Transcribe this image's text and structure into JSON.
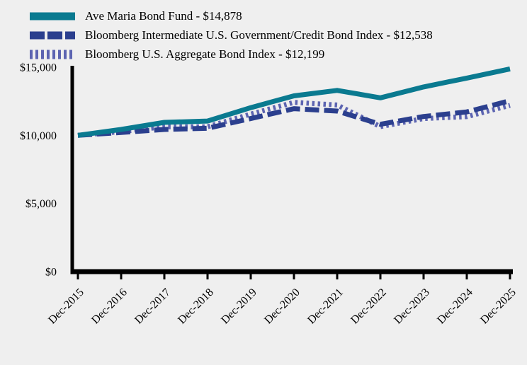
{
  "page": {
    "background_color": "#efefef",
    "text_color": "#000000"
  },
  "chart_data": {
    "type": "line",
    "title": "",
    "xlabel": "",
    "ylabel": "",
    "ylim": [
      0,
      15000
    ],
    "grid": false,
    "legend_position": "top-left",
    "x_categories": [
      "Dec-2015",
      "Dec-2016",
      "Dec-2017",
      "Dec-2018",
      "Dec-2019",
      "Dec-2020",
      "Dec-2021",
      "Dec-2022",
      "Dec-2023",
      "Dec-2024",
      "Dec-2025"
    ],
    "y_axis": {
      "ticks": [
        {
          "label": "$0",
          "value": 0
        },
        {
          "label": "$5,000",
          "value": 5000
        },
        {
          "label": "$10,000",
          "value": 10000
        },
        {
          "label": "$15,000",
          "value": 15000
        }
      ]
    },
    "series": [
      {
        "name": "Ave Maria Bond Fund - $14,878",
        "color": "#0a7a90",
        "style": "solid",
        "values": [
          10000,
          10430,
          10950,
          11050,
          12030,
          12900,
          13300,
          12750,
          13550,
          14200,
          14878
        ]
      },
      {
        "name": "Bloomberg Intermediate U.S. Government/Credit Bond Index - $12,538",
        "color": "#2b3f8e",
        "style": "dashed",
        "values": [
          10000,
          10210,
          10430,
          10520,
          11230,
          11960,
          11780,
          10810,
          11380,
          11720,
          12538
        ]
      },
      {
        "name": "Bloomberg U.S. Aggregate Bond Index - $12,199",
        "color": "#5c64b1",
        "style": "dotted",
        "values": [
          10000,
          10270,
          10630,
          10630,
          11560,
          12420,
          12230,
          10640,
          11230,
          11370,
          12199
        ]
      }
    ]
  }
}
